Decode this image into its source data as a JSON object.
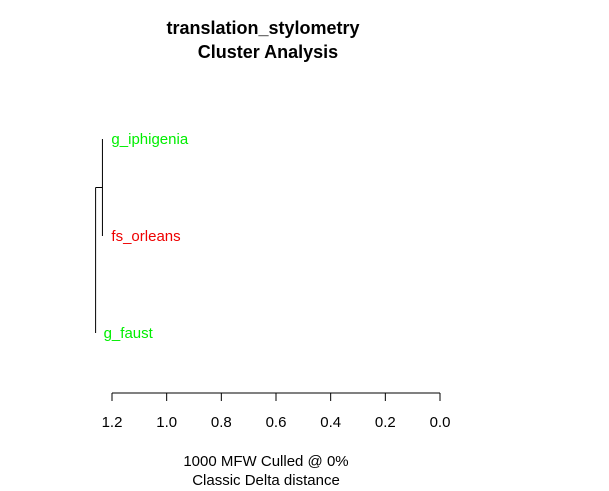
{
  "chart_data": {
    "type": "dendrogram",
    "title": "translation_stylometry",
    "subtitle": "Cluster Analysis",
    "xlabel_line1": "1000 MFW  Culled @ 0%",
    "xlabel_line2": "Classic Delta distance",
    "xlim": [
      1.2,
      0.0
    ],
    "xticks": [
      1.2,
      1.0,
      0.8,
      0.6,
      0.4,
      0.2,
      0.0
    ],
    "xtick_labels": [
      "1.2",
      "1.0",
      "0.8",
      "0.6",
      "0.4",
      "0.2",
      "0.0"
    ],
    "leaves": [
      {
        "label": "g_iphigenia",
        "color": "#00ee00"
      },
      {
        "label": "fs_orleans",
        "color": "#ee0000"
      },
      {
        "label": "g_faust",
        "color": "#00ee00"
      }
    ],
    "merges": [
      {
        "members": [
          "g_iphigenia",
          "fs_orleans"
        ],
        "height": 1.235
      },
      {
        "members": [
          "g_iphigenia",
          "fs_orleans",
          "g_faust"
        ],
        "height": 1.26
      }
    ]
  }
}
